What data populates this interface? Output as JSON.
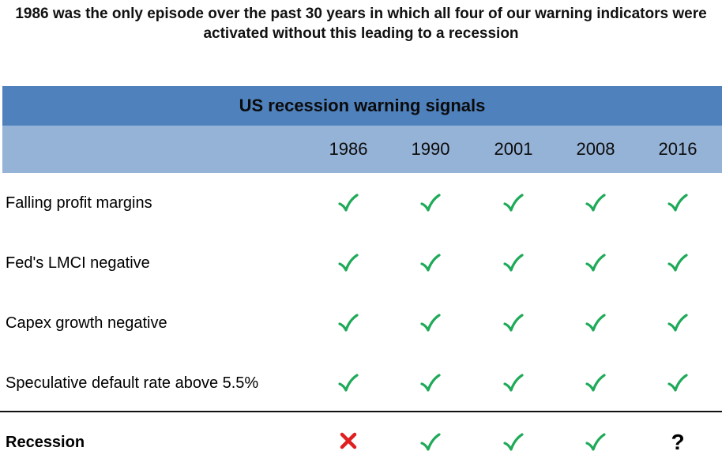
{
  "title": "1986 was the only episode over the past 30 years in which all four of our warning indicators were activated without this leading to a recession",
  "colors": {
    "header_dark": "#4f81bd",
    "header_light": "#95b3d7",
    "check": "#1faa59",
    "cross": "#e02020"
  },
  "chart_data": {
    "type": "table",
    "title": "US recession warning signals",
    "columns": [
      "1986",
      "1990",
      "2001",
      "2008",
      "2016"
    ],
    "rows": [
      {
        "label": "Falling profit margins",
        "values": [
          "check",
          "check",
          "check",
          "check",
          "check"
        ]
      },
      {
        "label": "Fed's LMCI negative",
        "values": [
          "check",
          "check",
          "check",
          "check",
          "check"
        ]
      },
      {
        "label": "Capex growth negative",
        "values": [
          "check",
          "check",
          "check",
          "check",
          "check"
        ]
      },
      {
        "label": "Speculative default rate above 5.5%",
        "values": [
          "check",
          "check",
          "check",
          "check",
          "check"
        ]
      }
    ],
    "outcome_row": {
      "label": "Recession",
      "values": [
        "cross",
        "check",
        "check",
        "check",
        "?"
      ]
    }
  }
}
